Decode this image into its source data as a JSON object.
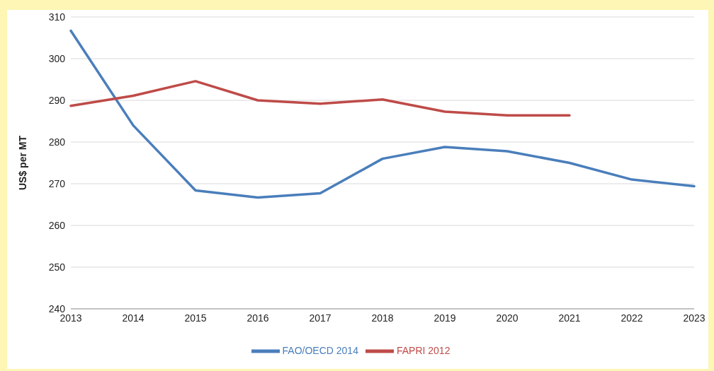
{
  "chart_data": {
    "type": "line",
    "ylabel": "US$ per MT",
    "categories": [
      "2013",
      "2014",
      "2015",
      "2016",
      "2017",
      "2018",
      "2019",
      "2020",
      "2021",
      "2022",
      "2023"
    ],
    "series": [
      {
        "name": "FAO/OECD 2014",
        "color": "#4a7ebb",
        "values": [
          306.7,
          284,
          268.4,
          266.7,
          267.7,
          276,
          278.8,
          277.8,
          275,
          271,
          269.4
        ]
      },
      {
        "name": "FAPRI 2012",
        "color": "#be4b48",
        "values": [
          288.7,
          291.1,
          294.6,
          290,
          289.2,
          290.2,
          287.3,
          286.4,
          286.4,
          null,
          null
        ]
      }
    ],
    "ylim": [
      240,
      310
    ],
    "yticks": [
      240,
      250,
      260,
      270,
      280,
      290,
      300,
      310
    ],
    "grid": "y",
    "legend": "bottom",
    "marker": "none",
    "line_style": "solid"
  }
}
